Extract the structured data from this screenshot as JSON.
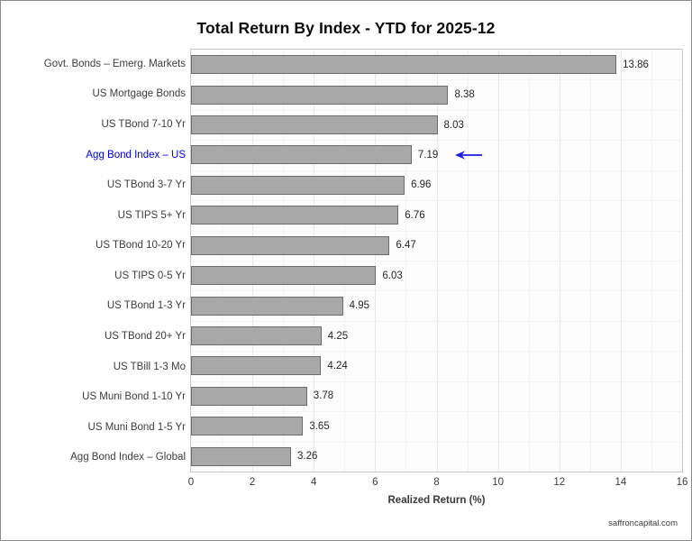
{
  "page": {
    "footer": "saffroncapital.com"
  },
  "chart_data": {
    "type": "bar",
    "orientation": "horizontal",
    "title": "Total Return By Index - YTD for 2025-12",
    "categories": [
      "Govt. Bonds – Emerg. Markets",
      "US Mortgage Bonds",
      "US TBond 7-10 Yr",
      "Agg Bond Index – US",
      "US TBond 3-7 Yr",
      "US TIPS 5+ Yr",
      "US TBond 10-20 Yr",
      "US TIPS 0-5 Yr",
      "US TBond 1-3 Yr",
      "US TBond 20+ Yr",
      "US TBill 1-3 Mo",
      "US Muni Bond 1-10 Yr",
      "US Muni Bond 1-5 Yr",
      "Agg Bond Index – Global"
    ],
    "values": [
      13.86,
      8.38,
      8.03,
      7.19,
      6.96,
      6.76,
      6.47,
      6.03,
      4.95,
      4.25,
      4.24,
      3.78,
      3.65,
      3.26
    ],
    "xlabel": "Realized Return (%)",
    "xlim": [
      0,
      16
    ],
    "xticks": [
      0,
      2,
      4,
      6,
      8,
      10,
      12,
      14,
      16
    ],
    "grid": "on",
    "legend": "none",
    "bar_fill": "#a8a8a8",
    "bar_border": "#6d6d6d",
    "highlight": {
      "index": 3,
      "category": "Agg Bond Index – US",
      "value": 7.19,
      "label_color": "#0000ee",
      "arrow_color": "#1a1ae0",
      "annotation": "left-arrow"
    }
  }
}
